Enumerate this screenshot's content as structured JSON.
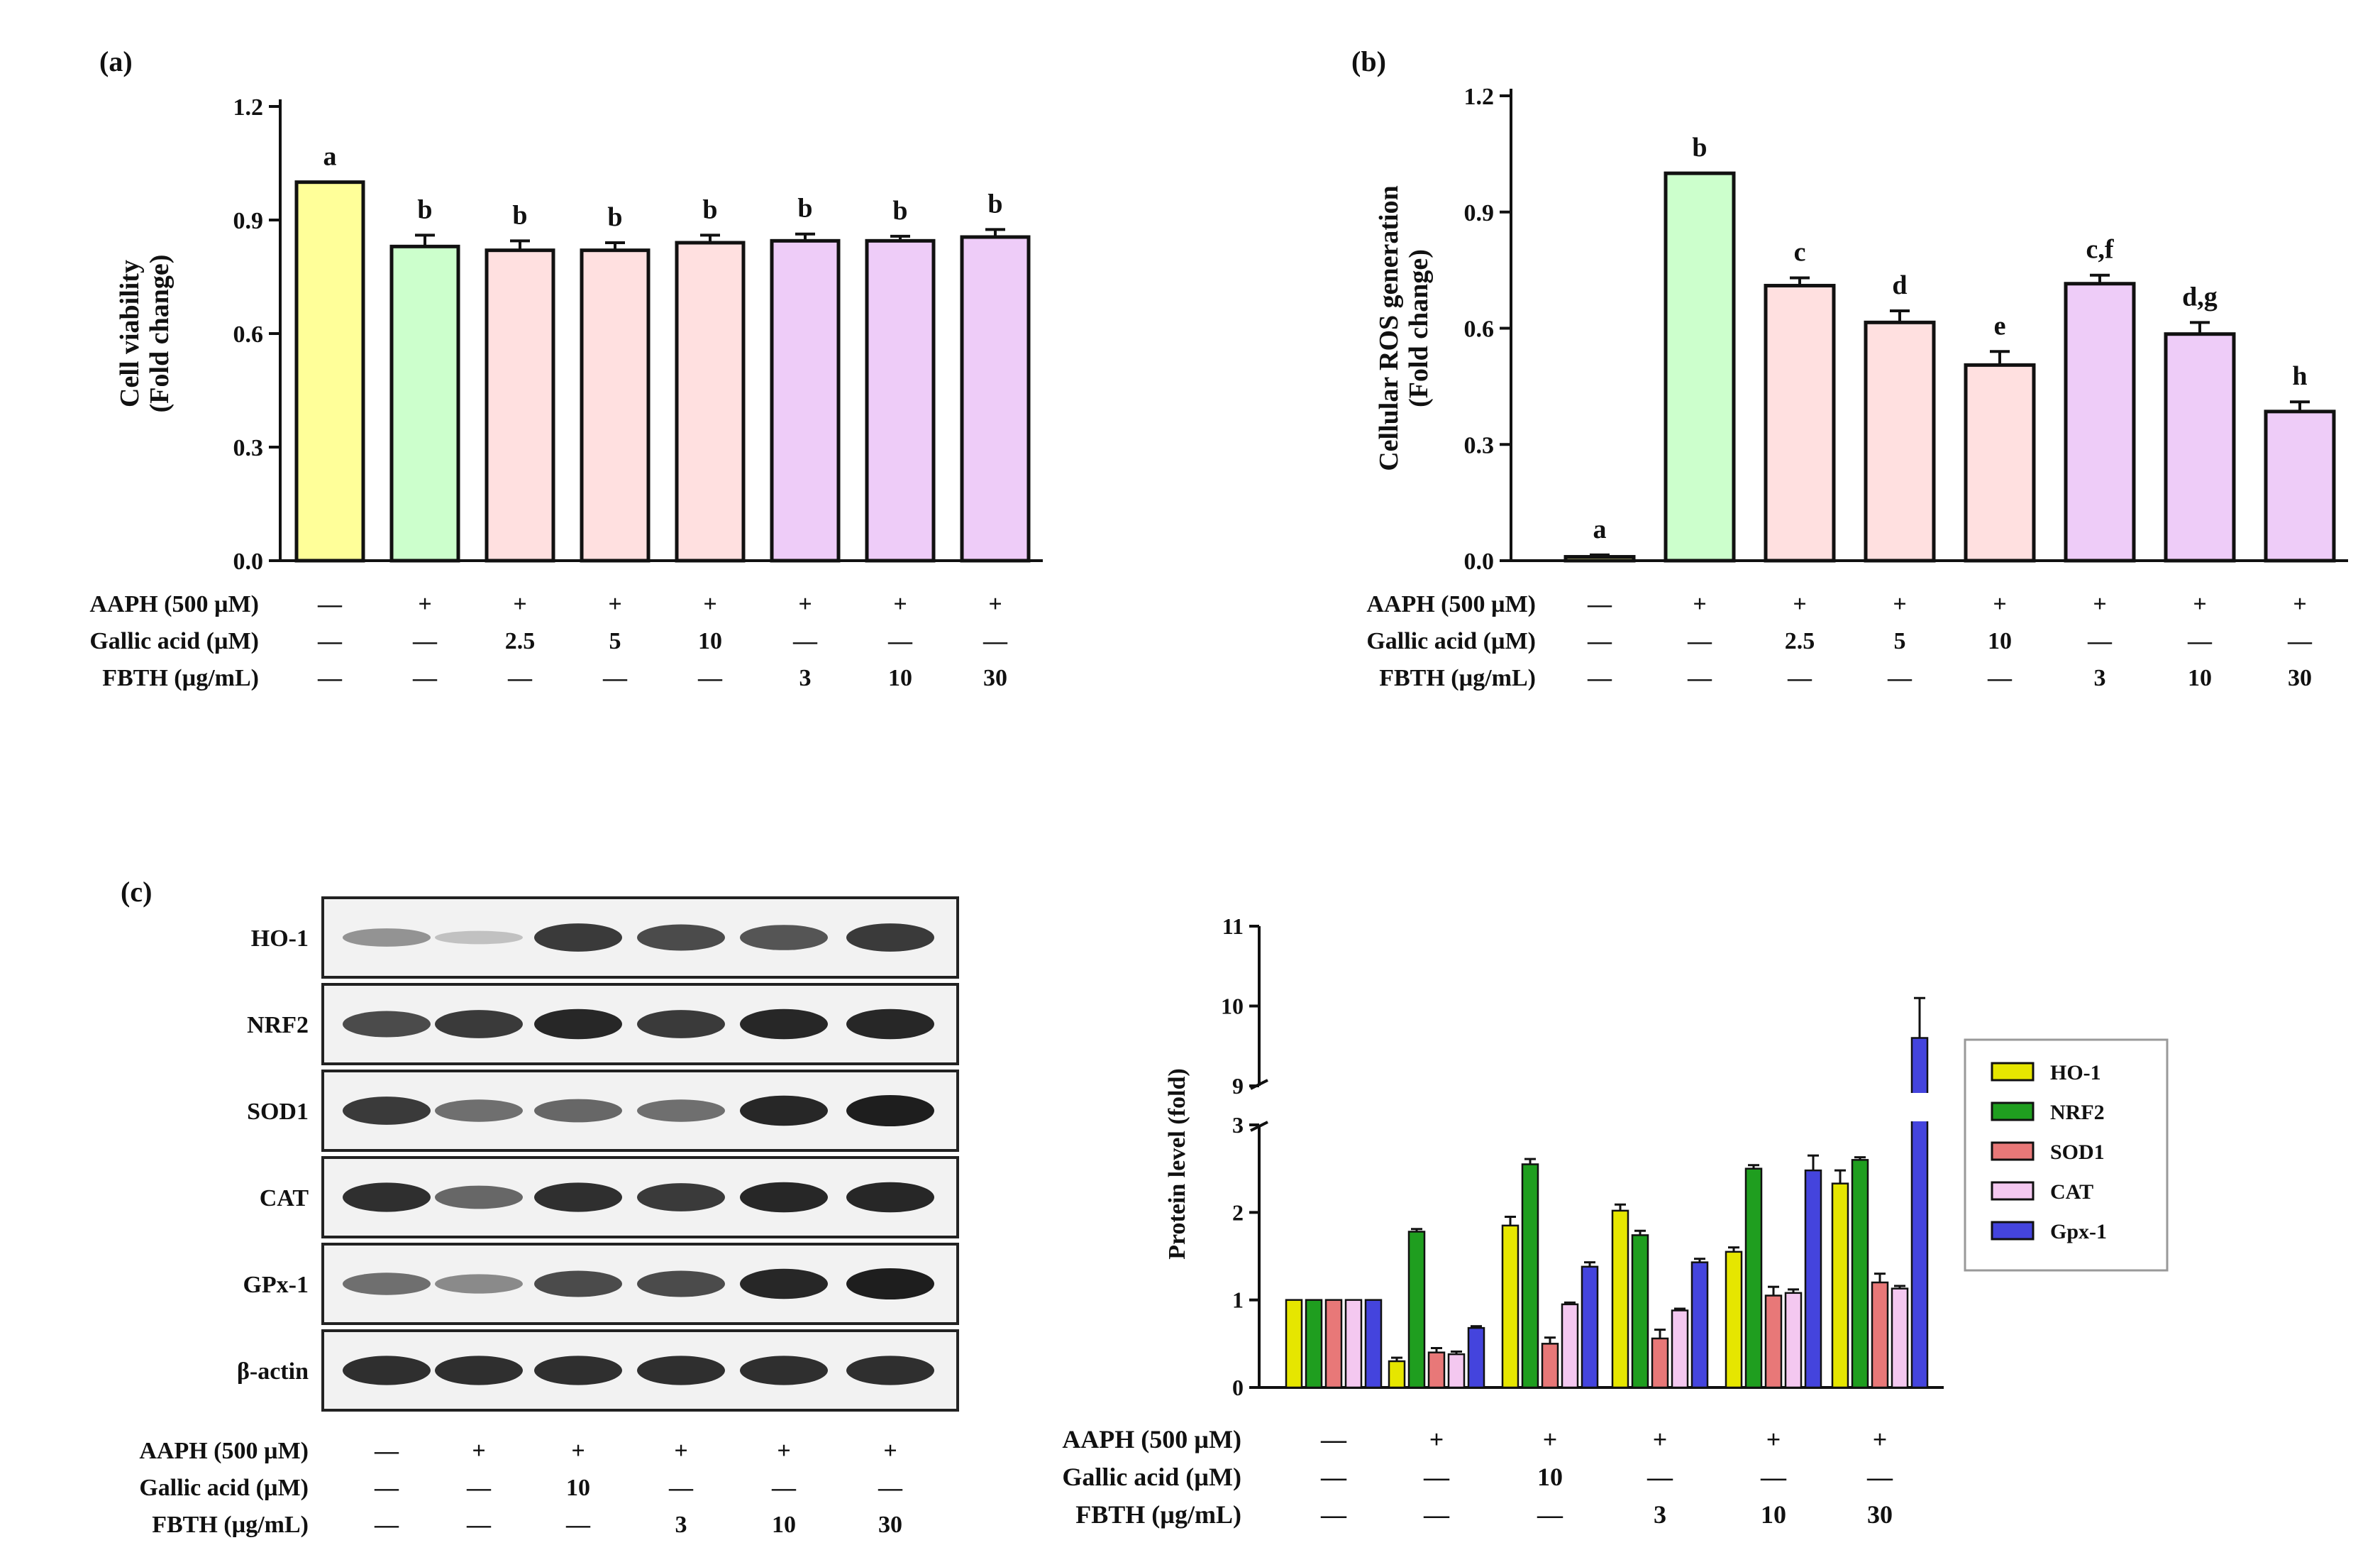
{
  "panels": {
    "a": {
      "label": "(a)"
    },
    "b": {
      "label": "(b)"
    },
    "c": {
      "label": "(c)"
    }
  },
  "colors": {
    "control": "#ffff99",
    "aaph": "#ccffcc",
    "gallic": "#ffe0e0",
    "fbth": "#eeccf8",
    "ho1": "#e6e600",
    "nrf2": "#1f9e1f",
    "sod1": "#e87878",
    "cat": "#f4c8f0",
    "gpx1": "#4444dd"
  },
  "conditions": {
    "labels": [
      "AAPH (500 µM)",
      "Gallic acid (µM)",
      "FBTH (µg/mL)"
    ],
    "eight": {
      "aaph": [
        "—",
        "+",
        "+",
        "+",
        "+",
        "+",
        "+",
        "+"
      ],
      "gallic": [
        "—",
        "—",
        "2.5",
        "5",
        "10",
        "—",
        "—",
        "—"
      ],
      "fbth": [
        "—",
        "—",
        "—",
        "—",
        "—",
        "3",
        "10",
        "30"
      ]
    },
    "six": {
      "aaph": [
        "—",
        "+",
        "+",
        "+",
        "+",
        "+"
      ],
      "gallic": [
        "—",
        "—",
        "10",
        "—",
        "—",
        "—"
      ],
      "fbth": [
        "—",
        "—",
        "—",
        "3",
        "10",
        "30"
      ]
    }
  },
  "blot": {
    "proteins": [
      "HO-1",
      "NRF2",
      "SOD1",
      "CAT",
      "GPx-1",
      "β-actin"
    ],
    "intensity": [
      [
        0.35,
        0.1,
        0.85,
        0.75,
        0.7,
        0.85
      ],
      [
        0.75,
        0.85,
        0.95,
        0.85,
        0.95,
        0.95
      ],
      [
        0.85,
        0.55,
        0.6,
        0.55,
        0.95,
        1.0
      ],
      [
        0.9,
        0.6,
        0.9,
        0.85,
        0.95,
        0.95
      ],
      [
        0.55,
        0.4,
        0.75,
        0.75,
        0.95,
        1.0
      ],
      [
        0.9,
        0.9,
        0.9,
        0.9,
        0.9,
        0.9
      ]
    ]
  },
  "chart_data": [
    {
      "panel": "a",
      "type": "bar",
      "ylabel": "Cell viability",
      "ylabel2": "(Fold change)",
      "ylim": [
        0,
        1.2
      ],
      "yticks": [
        "0.0",
        "0.3",
        "0.6",
        "0.9",
        "1.2"
      ],
      "values": [
        1.0,
        0.83,
        0.82,
        0.82,
        0.84,
        0.845,
        0.845,
        0.855
      ],
      "errors": [
        0,
        0.03,
        0.025,
        0.02,
        0.02,
        0.018,
        0.012,
        0.02
      ],
      "letters": [
        "a",
        "b",
        "b",
        "b",
        "b",
        "b",
        "b",
        "b"
      ],
      "groups": [
        "control",
        "aaph",
        "gallic",
        "gallic",
        "gallic",
        "fbth",
        "fbth",
        "fbth"
      ]
    },
    {
      "panel": "b",
      "type": "bar",
      "ylabel": "Cellular ROS generation",
      "ylabel2": "(Fold change)",
      "ylim": [
        0,
        1.2
      ],
      "yticks": [
        "0.0",
        "0.3",
        "0.6",
        "0.9",
        "1.2"
      ],
      "values": [
        0.01,
        1.0,
        0.71,
        0.615,
        0.505,
        0.715,
        0.585,
        0.385
      ],
      "errors": [
        0.005,
        0,
        0.02,
        0.03,
        0.035,
        0.022,
        0.03,
        0.025
      ],
      "letters": [
        "a",
        "b",
        "c",
        "d",
        "e",
        "c,f",
        "d,g",
        "h"
      ],
      "groups": [
        "control",
        "aaph",
        "gallic",
        "gallic",
        "gallic",
        "fbth",
        "fbth",
        "fbth"
      ]
    },
    {
      "panel": "c",
      "type": "bar",
      "ylabel": "Protein level (fold)",
      "yticks_lower": [
        "0",
        "1",
        "2",
        "3"
      ],
      "yticks_upper": [
        "9",
        "10",
        "11"
      ],
      "ylim_lower": [
        0,
        3
      ],
      "ylim_upper": [
        9,
        11
      ],
      "legend": [
        "HO-1",
        "NRF2",
        "SOD1",
        "CAT",
        "Gpx-1"
      ],
      "series": [
        {
          "name": "HO-1",
          "values": [
            1.0,
            0.3,
            1.85,
            2.02,
            1.55,
            2.33
          ],
          "errors": [
            0,
            0.04,
            0.1,
            0.07,
            0.05,
            0.15
          ]
        },
        {
          "name": "NRF2",
          "values": [
            1.0,
            1.78,
            2.55,
            1.74,
            2.5,
            2.6
          ],
          "errors": [
            0,
            0.03,
            0.06,
            0.05,
            0.04,
            0.03
          ]
        },
        {
          "name": "SOD1",
          "values": [
            1.0,
            0.4,
            0.5,
            0.56,
            1.05,
            1.2
          ],
          "errors": [
            0,
            0.05,
            0.07,
            0.1,
            0.1,
            0.1
          ]
        },
        {
          "name": "CAT",
          "values": [
            1.0,
            0.38,
            0.95,
            0.88,
            1.08,
            1.13
          ],
          "errors": [
            0,
            0.03,
            0.02,
            0.02,
            0.04,
            0.03
          ]
        },
        {
          "name": "Gpx-1",
          "values": [
            1.0,
            0.68,
            1.38,
            1.43,
            2.48,
            9.6
          ],
          "errors": [
            0,
            0.02,
            0.05,
            0.04,
            0.17,
            0.5
          ]
        }
      ]
    }
  ]
}
